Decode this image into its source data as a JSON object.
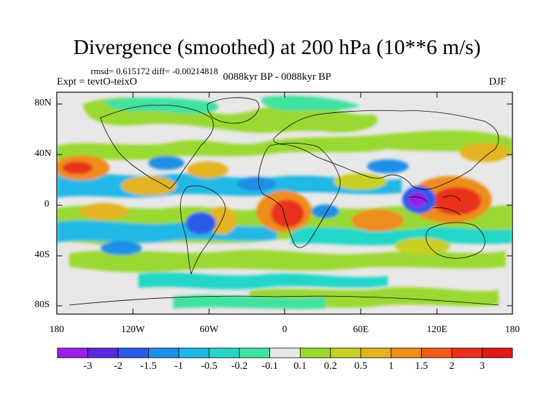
{
  "title": "Divergence (smoothed) at 200 hPa (10**6 m/s)",
  "stats": "rmsd= 0.615172 diff= -0.00214818",
  "expt": "Expt = tevtO-teixO",
  "period": "0088kyr BP - 0088kyr BP",
  "season": "DJF",
  "map": {
    "lat_labels": [
      "80N",
      "40N",
      "0",
      "40S",
      "80S"
    ],
    "lon_labels": [
      "180",
      "120W",
      "60W",
      "0",
      "60E",
      "120E",
      "180"
    ]
  },
  "colorbar": {
    "labels": [
      "-3",
      "-2",
      "-1.5",
      "-1",
      "-0.5",
      "-0.2",
      "-0.1",
      "0.1",
      "0.2",
      "0.5",
      "1",
      "1.5",
      "2",
      "3"
    ],
    "colors": [
      "#9a1ee8",
      "#5a28e0",
      "#2a5ae8",
      "#1c8fe6",
      "#20b8e6",
      "#22d6c8",
      "#40e2a0",
      "#e8e8e8",
      "#9ad830",
      "#c8d020",
      "#e4b420",
      "#ee8c1c",
      "#f05a18",
      "#e8301c",
      "#e01818"
    ]
  }
}
